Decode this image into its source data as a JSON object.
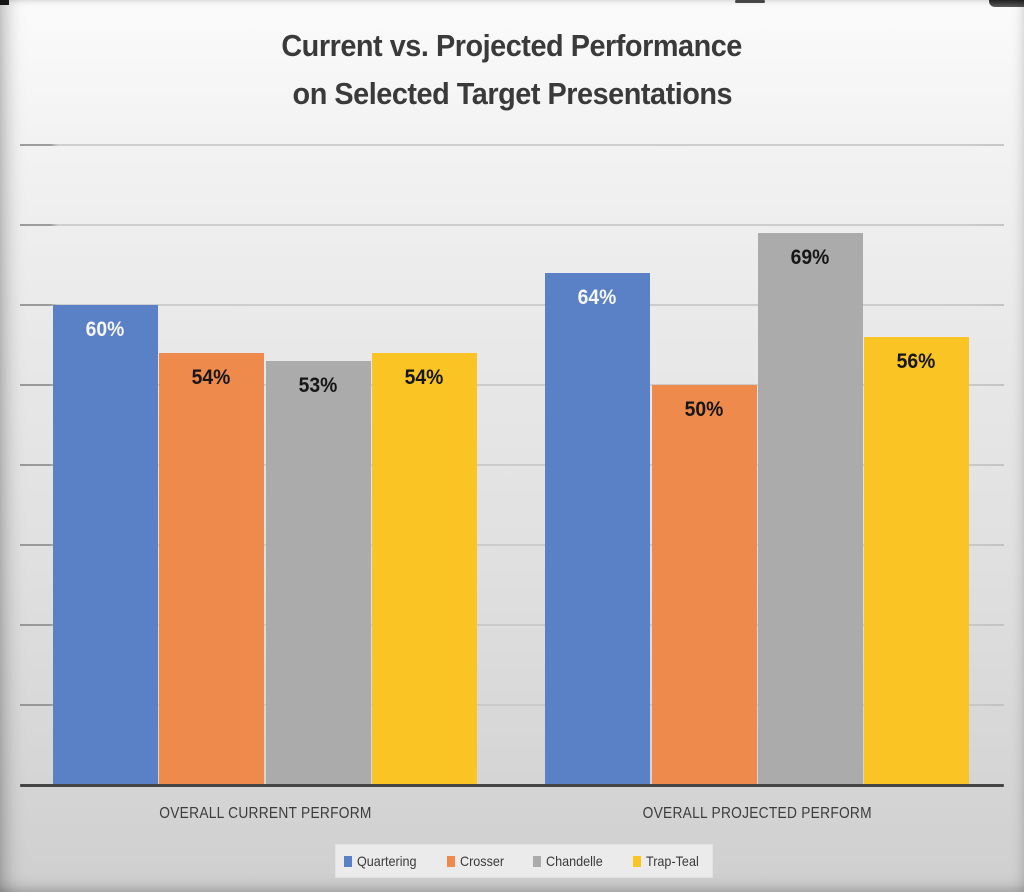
{
  "chart_data": {
    "type": "bar",
    "title": "Current vs. Projected Performance on Selected Target Presentations",
    "title_lines": [
      "Current vs. Projected Performance",
      "on Selected Target Presentations"
    ],
    "categories": [
      "OVERALL CURRENT PERFORM",
      "OVERALL PROJECTED PERFORM"
    ],
    "series": [
      {
        "name": "Quartering",
        "color": "#5a80c6",
        "label_color": "#f6f6f6",
        "values": [
          60,
          64
        ]
      },
      {
        "name": "Crosser",
        "color": "#ed8a4c",
        "label_color": "#161616",
        "values": [
          54,
          50
        ]
      },
      {
        "name": "Chandelle",
        "color": "#ababab",
        "label_color": "#161616",
        "values": [
          53,
          69
        ]
      },
      {
        "name": "Trap-Teal",
        "color": "#fac524",
        "label_color": "#161616",
        "values": [
          54,
          56
        ]
      }
    ],
    "value_suffix": "%",
    "ylim": [
      0,
      80
    ],
    "gridline_step": 10,
    "grid": true,
    "legend_position": "bottom",
    "xlabel": "",
    "ylabel": ""
  }
}
